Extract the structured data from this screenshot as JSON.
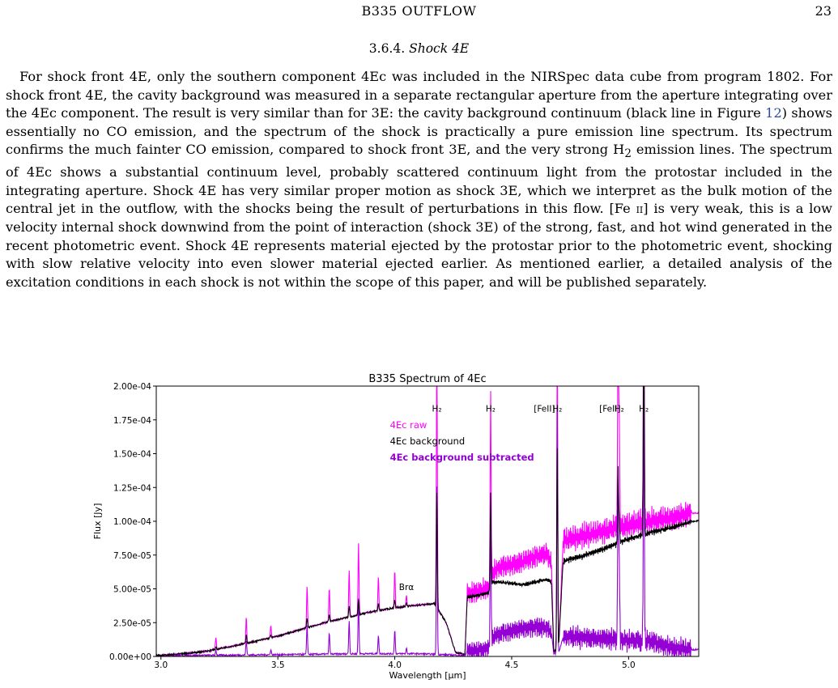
{
  "header": {
    "running_title": "B335 OUTFLOW",
    "page_number": "23"
  },
  "section": {
    "number": "3.6.4.",
    "title": "Shock 4E"
  },
  "paragraph": {
    "p1": "For shock front 4E, only the southern component 4Ec was included in the NIRSpec data cube from program 1802. For shock front 4E, the cavity background was measured in a separate rectangular aperture from the aperture integrating over the 4Ec component. The result is very similar than for 3E: the cavity background continuum (black line in Figure",
    "fig_ref": "12",
    "p2": ") shows essentially no CO emission, and the spectrum of the shock is practically a pure emission line spectrum. Its spectrum confirms the much fainter CO emission, compared to shock front 3E, and the very strong H",
    "h2_sub": "2",
    "p3": " emission lines. The spectrum of 4Ec shows a substantial continuum level, probably scattered continuum light from the protostar included in the integrating aperture. Shock 4E has very similar proper motion as shock 3E, which we interpret as the bulk motion of the central jet in the outflow, with the shocks being the result of perturbations in this flow. [Fe ",
    "fe_ion": "ii",
    "p4": "] is very weak, this is a low velocity internal shock downwind from the point of interaction (shock 3E) of the strong, fast, and hot wind generated in the recent photometric event. Shock 4E represents material ejected by the protostar prior to the photometric event, shocking with slow relative velocity into even slower material ejected earlier. As mentioned earlier, a detailed analysis of the excitation conditions in each shock is not within the scope of this paper, and will be published separately."
  },
  "chart_data": {
    "type": "line",
    "title": "B335 Spectrum of 4Ec",
    "xlabel": "Wavelength [μm]",
    "ylabel": "Flux [Jy]",
    "xlim": [
      2.98,
      5.3
    ],
    "ylim": [
      0,
      0.0002
    ],
    "x_ticks": [
      3.0,
      3.5,
      4.0,
      4.5,
      5.0
    ],
    "x_tick_labels": [
      "3.0",
      "3.5",
      "4.0",
      "4.5",
      "5.0"
    ],
    "y_ticks": [
      0,
      2.5e-05,
      5e-05,
      7.5e-05,
      0.0001,
      0.000125,
      0.00015,
      0.000175,
      0.0002
    ],
    "y_tick_labels": [
      "0.00e+00",
      "2.50e-05",
      "5.00e-05",
      "7.50e-05",
      "1.00e-04",
      "1.25e-04",
      "1.50e-04",
      "1.75e-04",
      "2.00e-04"
    ],
    "legend": {
      "placement": "top-center",
      "entries": [
        {
          "label": "4Ec raw",
          "color": "#ff00ff",
          "bold": false
        },
        {
          "label": "4Ec background",
          "color": "#000000",
          "bold": false
        },
        {
          "label": "4Ec background subtracted",
          "color": "#9400d3",
          "bold": true
        }
      ]
    },
    "line_labels": [
      {
        "label": "H₂",
        "x": 4.18,
        "y": 0.000181
      },
      {
        "label": "H₂",
        "x": 4.41,
        "y": 0.000181
      },
      {
        "label": "[FeII]",
        "x": 4.64,
        "y": 0.000181
      },
      {
        "label": "H₂",
        "x": 4.695,
        "y": 0.000181
      },
      {
        "label": "[FeII]",
        "x": 4.92,
        "y": 0.000181
      },
      {
        "label": "H₂",
        "x": 4.96,
        "y": 0.000181
      },
      {
        "label": "H₂",
        "x": 5.065,
        "y": 0.000181
      },
      {
        "label": "Brα",
        "x": 4.05,
        "y": 4.9e-05
      }
    ],
    "continuum_raw": {
      "x": [
        2.98,
        3.1,
        3.2,
        3.3,
        3.4,
        3.5,
        3.6,
        3.7,
        3.8,
        3.9,
        4.0,
        4.1,
        4.17,
        4.22,
        4.26,
        4.3,
        4.31,
        4.35,
        4.4,
        4.42,
        4.45,
        4.5,
        4.55,
        4.6,
        4.65,
        4.67,
        4.68,
        4.7,
        4.72,
        4.75,
        4.8,
        4.9,
        5.0,
        5.1,
        5.2,
        5.27
      ],
      "y": [
        5e-07,
        2e-06,
        4e-06,
        7.5e-06,
        1.1e-05,
        1.5e-05,
        2e-05,
        2.5e-05,
        2.9e-05,
        3.3e-05,
        3.6e-05,
        3.8e-05,
        3.9e-05,
        2.5e-05,
        3e-06,
        1.5e-06,
        4.6e-05,
        4.8e-05,
        5e-05,
        6.2e-05,
        6.6e-05,
        6.8e-05,
        7e-05,
        7.4e-05,
        7.6e-05,
        7e-05,
        4e-06,
        4e-06,
        8.5e-05,
        8.7e-05,
        8.9e-05,
        9.3e-05,
        9.7e-05,
        0.0001,
        0.000103,
        0.000106
      ]
    },
    "continuum_background": {
      "x": [
        2.98,
        3.1,
        3.2,
        3.3,
        3.4,
        3.5,
        3.6,
        3.7,
        3.8,
        3.9,
        4.0,
        4.1,
        4.17,
        4.22,
        4.26,
        4.3,
        4.31,
        4.35,
        4.4,
        4.42,
        4.45,
        4.5,
        4.55,
        4.6,
        4.65,
        4.67,
        4.68,
        4.7,
        4.72,
        4.75,
        4.8,
        4.9,
        5.0,
        5.1,
        5.2,
        5.27
      ],
      "y": [
        5e-07,
        2e-06,
        4e-06,
        7.5e-06,
        1.1e-05,
        1.5e-05,
        2e-05,
        2.5e-05,
        2.9e-05,
        3.3e-05,
        3.6e-05,
        3.8e-05,
        3.9e-05,
        2.5e-05,
        3e-06,
        1.5e-06,
        4.4e-05,
        4.5e-05,
        4.7e-05,
        5.5e-05,
        5.5e-05,
        5.4e-05,
        5.3e-05,
        5.5e-05,
        5.7e-05,
        5.5e-05,
        4e-06,
        4e-06,
        7e-05,
        7.2e-05,
        7.4e-05,
        8e-05,
        8.7e-05,
        9.2e-05,
        9.6e-05,
        0.0001
      ]
    },
    "continuum_subtracted": {
      "x": [
        2.98,
        3.3,
        3.6,
        3.9,
        4.1,
        4.26,
        4.3,
        4.31,
        4.35,
        4.4,
        4.42,
        4.45,
        4.5,
        4.55,
        4.6,
        4.65,
        4.67,
        4.68,
        4.7,
        4.72,
        4.75,
        4.8,
        4.9,
        5.0,
        5.1,
        5.2,
        5.27
      ],
      "y": [
        5e-07,
        1e-06,
        1.5e-06,
        2e-06,
        2e-06,
        1e-06,
        5e-07,
        3.5e-06,
        4e-06,
        6e-06,
        1.4e-05,
        1.7e-05,
        1.9e-05,
        2.1e-05,
        2.2e-05,
        2.1e-05,
        1.8e-05,
        2e-06,
        2e-06,
        1.4e-05,
        1.5e-05,
        1.4e-05,
        1.3e-05,
        1.2e-05,
        1.1e-05,
        6e-06,
        5e-06
      ]
    },
    "emission_lines": [
      {
        "x": 3.235,
        "raw": 9e-06,
        "bg": 2e-06,
        "sub": 4e-06
      },
      {
        "x": 3.365,
        "raw": 1.9e-05,
        "bg": 6e-06,
        "sub": 1.1e-05
      },
      {
        "x": 3.47,
        "raw": 9e-06,
        "bg": 2e-06,
        "sub": 4e-06
      },
      {
        "x": 3.625,
        "raw": 3.1e-05,
        "bg": 7e-06,
        "sub": 2.2e-05
      },
      {
        "x": 3.72,
        "raw": 2.5e-05,
        "bg": 5e-06,
        "sub": 1.6e-05
      },
      {
        "x": 3.805,
        "raw": 3.4e-05,
        "bg": 8e-06,
        "sub": 2.5e-05
      },
      {
        "x": 3.845,
        "raw": 5.3e-05,
        "bg": 1.1e-05,
        "sub": 4.1e-05
      },
      {
        "x": 3.93,
        "raw": 2.5e-05,
        "bg": 5e-06,
        "sub": 1.4e-05
      },
      {
        "x": 4.0,
        "raw": 2.8e-05,
        "bg": 6e-06,
        "sub": 1.8e-05
      },
      {
        "x": 4.05,
        "raw": 8e-06,
        "bg": 2e-06,
        "sub": 4e-06
      },
      {
        "x": 4.18,
        "raw": 0.00019,
        "bg": 8.5e-05,
        "sub": 0.000125
      },
      {
        "x": 4.41,
        "raw": 0.000137,
        "bg": 7e-05,
        "sub": 9e-05
      },
      {
        "x": 4.695,
        "raw": 0.00023,
        "bg": 0.00015,
        "sub": 0.000185
      },
      {
        "x": 4.955,
        "raw": 0.000155,
        "bg": 5.5e-05,
        "sub": 0.00011
      },
      {
        "x": 4.96,
        "raw": 7.8e-05,
        "bg": 1.8e-05,
        "sub": 5.8e-05
      },
      {
        "x": 5.065,
        "raw": 0.00021,
        "bg": 0.00017,
        "sub": 0.00019
      }
    ]
  }
}
